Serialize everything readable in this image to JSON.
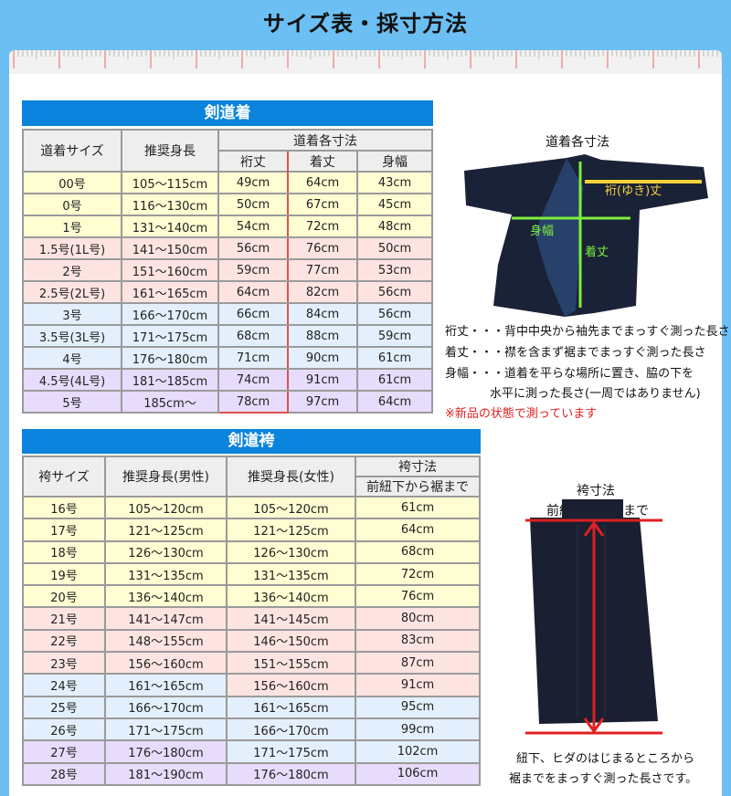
{
  "page_title": "サイズ表・採寸方法",
  "colors": {
    "background": "#6cbff2",
    "section_bar": "#0a84dc",
    "row_yellow": "#fffdd2",
    "row_pink": "#fde4e1",
    "row_blue": "#e3effc",
    "row_purple": "#e7dcfb",
    "highlight_border": "#d9534f"
  },
  "gi": {
    "section_title": "剣道着",
    "headers": {
      "size": "道着サイズ",
      "height": "推奨身長",
      "group": "道着各寸法",
      "yuki": "裄丈",
      "kitake": "着丈",
      "mihaba": "身幅"
    },
    "rows": [
      {
        "size": "00号",
        "height": "105～115cm",
        "yuki": "49cm",
        "kitake": "64cm",
        "mihaba": "43cm",
        "color": "y"
      },
      {
        "size": "0号",
        "height": "116～130cm",
        "yuki": "50cm",
        "kitake": "67cm",
        "mihaba": "45cm",
        "color": "y"
      },
      {
        "size": "1号",
        "height": "131～140cm",
        "yuki": "54cm",
        "kitake": "72cm",
        "mihaba": "48cm",
        "color": "y"
      },
      {
        "size": "1.5号(1L号)",
        "height": "141～150cm",
        "yuki": "56cm",
        "kitake": "76cm",
        "mihaba": "50cm",
        "color": "p"
      },
      {
        "size": "2号",
        "height": "151～160cm",
        "yuki": "59cm",
        "kitake": "77cm",
        "mihaba": "53cm",
        "color": "p"
      },
      {
        "size": "2.5号(2L号)",
        "height": "161～165cm",
        "yuki": "64cm",
        "kitake": "82cm",
        "mihaba": "56cm",
        "color": "p"
      },
      {
        "size": "3号",
        "height": "166～170cm",
        "yuki": "66cm",
        "kitake": "84cm",
        "mihaba": "56cm",
        "color": "b"
      },
      {
        "size": "3.5号(3L号)",
        "height": "171～175cm",
        "yuki": "68cm",
        "kitake": "88cm",
        "mihaba": "59cm",
        "color": "b"
      },
      {
        "size": "4号",
        "height": "176～180cm",
        "yuki": "71cm",
        "kitake": "90cm",
        "mihaba": "61cm",
        "color": "b"
      },
      {
        "size": "4.5号(4L号)",
        "height": "181～185cm",
        "yuki": "74cm",
        "kitake": "91cm",
        "mihaba": "61cm",
        "color": "v"
      },
      {
        "size": "5号",
        "height": "185cm～",
        "yuki": "78cm",
        "kitake": "97cm",
        "mihaba": "64cm",
        "color": "v"
      }
    ],
    "diagram": {
      "title": "道着各寸法",
      "label_yuki": "裄(ゆき)丈",
      "label_mihaba": "身幅",
      "label_kitake": "着丈"
    },
    "notes": [
      "裄丈・・・背中中央から袖先までまっすぐ測った長さ",
      "着丈・・・襟を含まず裾までまっすぐ測った長さ",
      "身幅・・・道着を平らな場所に置き、脇の下を",
      "水平に測った長さ(一周ではありません)"
    ],
    "warning": "※新品の状態で測っています"
  },
  "hakama": {
    "section_title": "剣道袴",
    "headers": {
      "size": "袴サイズ",
      "men": "推奨身長(男性)",
      "women": "推奨身長(女性)",
      "group": "袴寸法",
      "length": "前紐下から裾まで"
    },
    "rows": [
      {
        "size": "16号",
        "men": "105～120cm",
        "women": "105～120cm",
        "length": "61cm",
        "c1": "y",
        "c2": "y"
      },
      {
        "size": "17号",
        "men": "121～125cm",
        "women": "121～125cm",
        "length": "64cm",
        "c1": "y",
        "c2": "y"
      },
      {
        "size": "18号",
        "men": "126～130cm",
        "women": "126～130cm",
        "length": "68cm",
        "c1": "y",
        "c2": "y"
      },
      {
        "size": "19号",
        "men": "131～135cm",
        "women": "131～135cm",
        "length": "72cm",
        "c1": "y",
        "c2": "y"
      },
      {
        "size": "20号",
        "men": "136～140cm",
        "women": "136～140cm",
        "length": "76cm",
        "c1": "y",
        "c2": "y"
      },
      {
        "size": "21号",
        "men": "141～147cm",
        "women": "141～145cm",
        "length": "80cm",
        "c1": "p",
        "c2": "p"
      },
      {
        "size": "22号",
        "men": "148～155cm",
        "women": "146～150cm",
        "length": "83cm",
        "c1": "p",
        "c2": "p"
      },
      {
        "size": "23号",
        "men": "156～160cm",
        "women": "151～155cm",
        "length": "87cm",
        "c1": "p",
        "c2": "p"
      },
      {
        "size": "24号",
        "men": "161～165cm",
        "women": "156～160cm",
        "length": "91cm",
        "c1": "b",
        "c2": "p"
      },
      {
        "size": "25号",
        "men": "166～170cm",
        "women": "161～165cm",
        "length": "95cm",
        "c1": "b",
        "c2": "b"
      },
      {
        "size": "26号",
        "men": "171～175cm",
        "women": "166～170cm",
        "length": "99cm",
        "c1": "b",
        "c2": "b"
      },
      {
        "size": "27号",
        "men": "176～180cm",
        "women": "171～175cm",
        "length": "102cm",
        "c1": "v",
        "c2": "b"
      },
      {
        "size": "28号",
        "men": "181～190cm",
        "women": "176～180cm",
        "length": "106cm",
        "c1": "v",
        "c2": "v"
      }
    ],
    "diagram": {
      "title": "袴寸法",
      "subtitle": "前紐下から裾まで"
    },
    "notes": [
      "紐下、ヒダのはじまるところから",
      "裾までをまっすぐ測った長さです。"
    ]
  }
}
